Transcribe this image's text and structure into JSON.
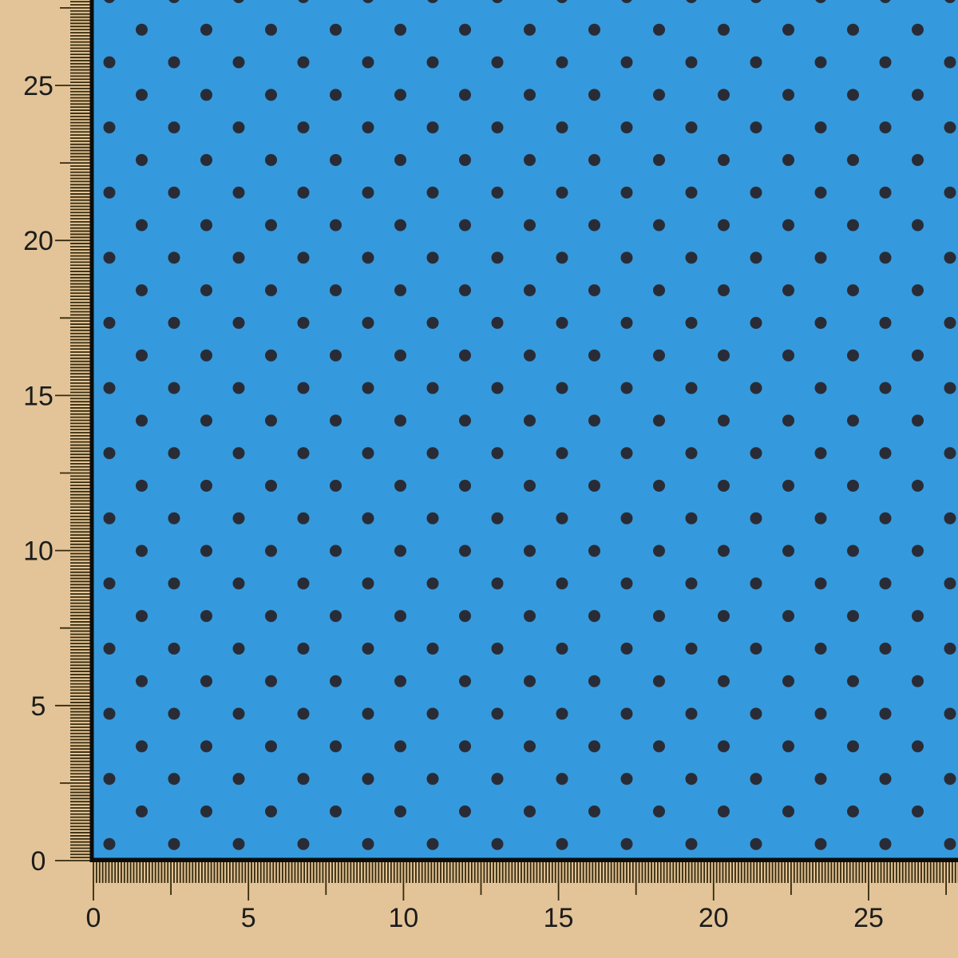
{
  "scene": {
    "subject": "blue-polka-dot-fabric-swatch-on-measuring-mat"
  },
  "rulers": {
    "vertical": {
      "labels": [
        "25",
        "20",
        "15",
        "10",
        "5",
        "0"
      ]
    },
    "horizontal": {
      "labels": [
        "0",
        "5",
        "10",
        "15",
        "20",
        "25"
      ]
    }
  },
  "fabric": {
    "pattern_name": "polka-dots"
  },
  "colors": {
    "mat_background": "#e3c498",
    "fabric_blue": "#1e8fd9",
    "dot_color": "#10141f",
    "tick_color": "#352a0d",
    "label_text": "#1c1c1c",
    "fabric_edge": "#0c0c0c"
  }
}
